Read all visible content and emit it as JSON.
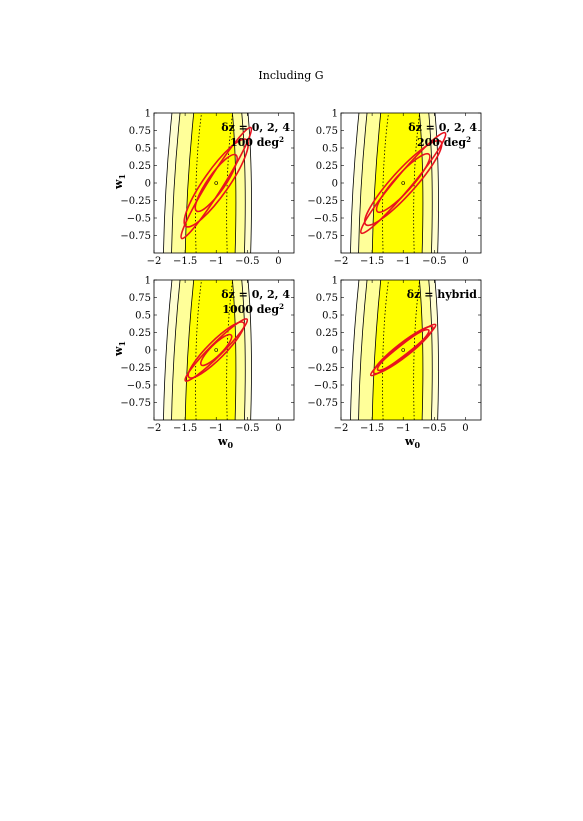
{
  "figure": {
    "title": "Including G"
  },
  "chart_data": [
    {
      "type": "contour",
      "xlabel": "",
      "ylabel": "w",
      "ylabel_sub": "1",
      "annotation_line1": "δz = 0, 2, 4",
      "annotation_line2": "100 deg",
      "annotation_sup": "2",
      "xlim": [
        -2,
        0.25
      ],
      "ylim": [
        -1,
        1
      ],
      "x_ticks": [
        "−2",
        "−1.5",
        "−1",
        "−0.5",
        "0"
      ],
      "y_ticks": [
        "1",
        "0.75",
        "0.5",
        "0.25",
        "0",
        "−0.25",
        "−0.5",
        "−0.75"
      ],
      "fiducial": [
        -1,
        0
      ],
      "ellipses": [
        {
          "cx": -1,
          "cy": 0,
          "rx": 1.05,
          "ry": 0.12,
          "angle_deg": -58
        },
        {
          "cx": -1,
          "cy": 0,
          "rx": 0.85,
          "ry": 0.2,
          "angle_deg": -55
        },
        {
          "cx": -1,
          "cy": 0,
          "rx": 0.55,
          "ry": 0.14,
          "angle_deg": -55
        }
      ]
    },
    {
      "type": "contour",
      "xlabel": "",
      "ylabel": "",
      "ylabel_sub": "",
      "annotation_line1": "δz = 0, 2, 4",
      "annotation_line2": "200 deg",
      "annotation_sup": "2",
      "xlim": [
        -2,
        0.25
      ],
      "ylim": [
        -1,
        1
      ],
      "x_ticks": [
        "−2",
        "−1.5",
        "−1",
        "−0.5",
        "0"
      ],
      "y_ticks": [
        "1",
        "0.75",
        "0.5",
        "0.25",
        "0",
        "−0.25",
        "−0.5",
        "−0.75"
      ],
      "fiducial": [
        -1,
        0
      ],
      "ellipses": [
        {
          "cx": -1,
          "cy": 0,
          "rx": 1.05,
          "ry": 0.13,
          "angle_deg": -50
        },
        {
          "cx": -1,
          "cy": 0,
          "rx": 0.9,
          "ry": 0.19,
          "angle_deg": -48
        },
        {
          "cx": -1,
          "cy": 0,
          "rx": 0.62,
          "ry": 0.14,
          "angle_deg": -48
        }
      ]
    },
    {
      "type": "contour",
      "xlabel": "w",
      "xlabel_sub": "0",
      "ylabel": "w",
      "ylabel_sub": "1",
      "annotation_line1": "δz = 0, 2, 4",
      "annotation_line2": "1000 deg",
      "annotation_sup": "2",
      "xlim": [
        -2,
        0.25
      ],
      "ylim": [
        -1,
        1
      ],
      "x_ticks": [
        "−2",
        "−1.5",
        "−1",
        "−0.5",
        "0"
      ],
      "y_ticks": [
        "1",
        "0.75",
        "0.5",
        "0.25",
        "0",
        "−0.25",
        "−0.5",
        "−0.75"
      ],
      "fiducial": [
        -1,
        0
      ],
      "ellipses": [
        {
          "cx": -1,
          "cy": 0,
          "rx": 0.7,
          "ry": 0.1,
          "angle_deg": -45
        },
        {
          "cx": -1,
          "cy": 0,
          "rx": 0.62,
          "ry": 0.14,
          "angle_deg": -45
        },
        {
          "cx": -1,
          "cy": 0,
          "rx": 0.34,
          "ry": 0.09,
          "angle_deg": -45
        }
      ]
    },
    {
      "type": "contour",
      "xlabel": "w",
      "xlabel_sub": "0",
      "ylabel": "",
      "ylabel_sub": "",
      "annotation_line1": "δz = hybrid",
      "annotation_line2": "",
      "annotation_sup": "",
      "xlim": [
        -2,
        0.25
      ],
      "ylim": [
        -1,
        1
      ],
      "x_ticks": [
        "−2",
        "−1.5",
        "−1",
        "−0.5",
        "0"
      ],
      "y_ticks": [
        "1",
        "0.75",
        "0.5",
        "0.25",
        "0",
        "−0.25",
        "−0.5",
        "−0.75"
      ],
      "fiducial": [
        -1,
        0
      ],
      "ellipses": [
        {
          "cx": -1,
          "cy": 0,
          "rx": 0.66,
          "ry": 0.08,
          "angle_deg": -38
        },
        {
          "cx": -1,
          "cy": 0,
          "rx": 0.6,
          "ry": 0.11,
          "angle_deg": -38
        },
        {
          "cx": -1,
          "cy": 0,
          "rx": 0.52,
          "ry": 0.09,
          "angle_deg": -38
        }
      ]
    }
  ],
  "colors": {
    "band_outer": "#fffed0",
    "band_mid": "#ffff99",
    "band_inner": "#ffff00",
    "ellipse": "#e8131e",
    "contour_line": "#000000"
  }
}
